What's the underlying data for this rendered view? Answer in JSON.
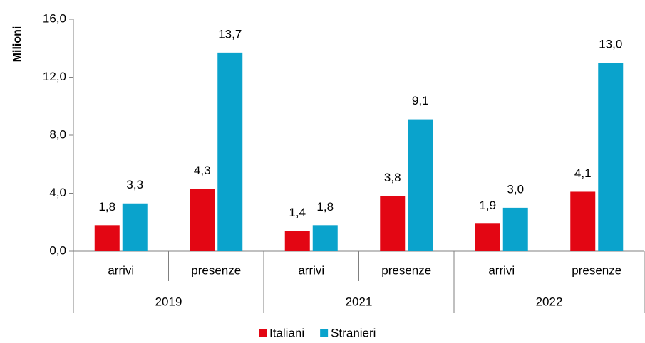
{
  "chart_data": {
    "type": "bar",
    "y_label": "Milioni",
    "categories": [
      "arrivi",
      "presenze",
      "arrivi",
      "presenze",
      "arrivi",
      "presenze"
    ],
    "groups": [
      "2019",
      "2021",
      "2022"
    ],
    "series": [
      {
        "name": "Italiani",
        "color": "#e30613",
        "values": [
          1.8,
          4.3,
          1.4,
          3.8,
          1.9,
          4.1
        ],
        "value_labels": [
          "1,8",
          "4,3",
          "1,4",
          "3,8",
          "1,9",
          "4,1"
        ]
      },
      {
        "name": "Stranieri",
        "color": "#0aa3cc",
        "values": [
          3.3,
          13.7,
          1.8,
          9.1,
          3.0,
          13.0
        ],
        "value_labels": [
          "3,3",
          "13,7",
          "1,8",
          "9,1",
          "3,0",
          "13,0"
        ]
      }
    ],
    "ylim": [
      0,
      16
    ],
    "yticks": [
      {
        "value": 0,
        "label": "0,0"
      },
      {
        "value": 4,
        "label": "4,0"
      },
      {
        "value": 8,
        "label": "8,0"
      },
      {
        "value": 12,
        "label": "12,0"
      },
      {
        "value": 16,
        "label": "16,0"
      }
    ]
  }
}
